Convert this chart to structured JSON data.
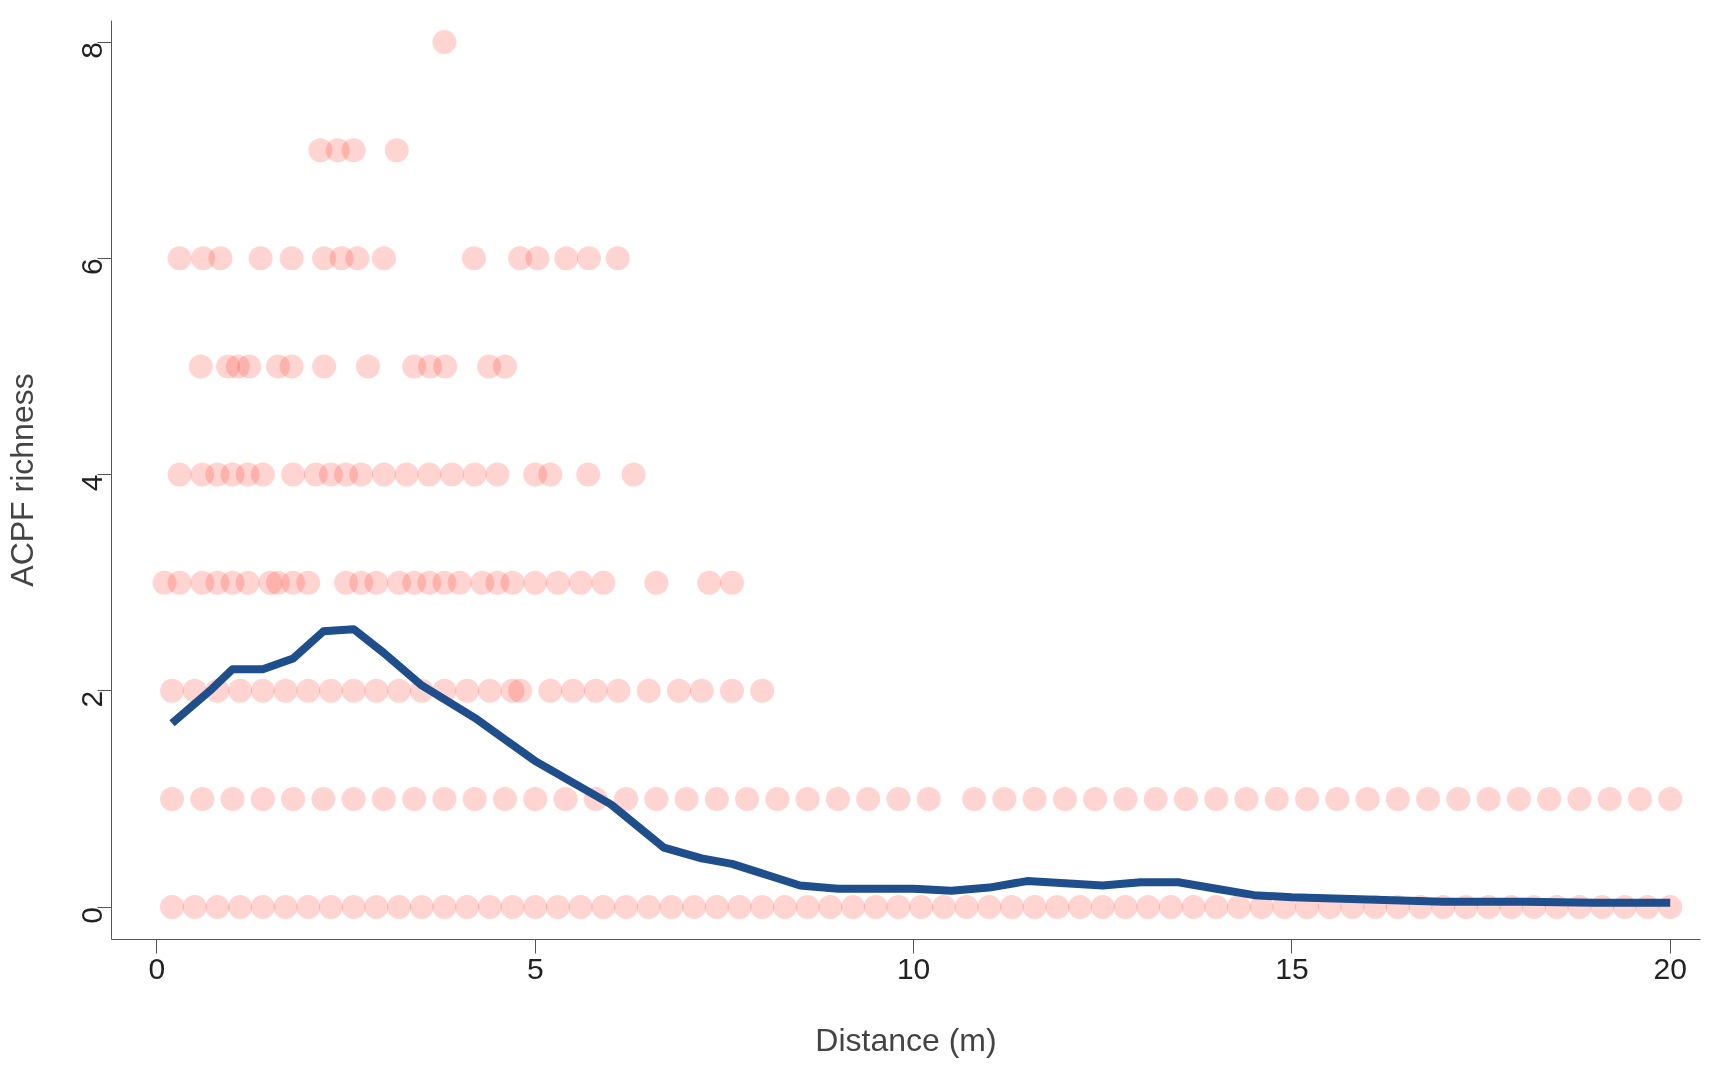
{
  "chart_data": {
    "type": "scatter",
    "xlabel": "Distance (m)",
    "ylabel": "ACPF richness",
    "xlim": [
      -0.6,
      20.4
    ],
    "ylim": [
      -0.3,
      8.2
    ],
    "xticks": [
      0,
      5,
      10,
      15,
      20
    ],
    "yticks": [
      0,
      2,
      4,
      6,
      8
    ],
    "grid": false,
    "marker": "circle",
    "series": [
      {
        "color": "#ff2a1a",
        "x": [
          3.8,
          2.16,
          2.39,
          2.6,
          3.17,
          0.3,
          0.61,
          0.84,
          1.37,
          1.78,
          2.21,
          2.44,
          2.65,
          3.0,
          4.19,
          4.8,
          5.03,
          5.41,
          5.71,
          6.09,
          0.58,
          0.94,
          1.07,
          1.22,
          1.6,
          1.78,
          2.21,
          2.79,
          3.4,
          3.61,
          3.81,
          4.39,
          4.6,
          0.3,
          0.6,
          0.8,
          1.0,
          1.2,
          1.4,
          1.8,
          2.1,
          2.3,
          2.5,
          2.7,
          3.0,
          3.3,
          3.6,
          3.9,
          4.2,
          4.5,
          5.0,
          5.2,
          5.7,
          6.3,
          0.1,
          0.3,
          0.6,
          0.8,
          1.0,
          1.2,
          1.5,
          1.6,
          1.8,
          2.0,
          2.5,
          2.7,
          2.9,
          3.2,
          3.4,
          3.6,
          3.8,
          4.0,
          4.3,
          4.5,
          4.7,
          5.0,
          5.3,
          5.6,
          5.9,
          6.6,
          7.3,
          7.6,
          0.2,
          0.5,
          0.8,
          1.1,
          1.4,
          1.7,
          2.0,
          2.3,
          2.6,
          2.9,
          3.2,
          3.5,
          3.8,
          4.1,
          4.4,
          4.7,
          4.8,
          5.2,
          5.5,
          5.8,
          6.1,
          6.5,
          6.9,
          7.2,
          7.6,
          8.0,
          0.2,
          0.6,
          1.0,
          1.4,
          1.8,
          2.2,
          2.6,
          3.0,
          3.4,
          3.8,
          4.2,
          4.6,
          5.0,
          5.4,
          5.8,
          6.2,
          6.6,
          7.0,
          7.4,
          7.8,
          8.2,
          8.6,
          9.0,
          9.4,
          9.8,
          10.2,
          10.8,
          11.2,
          11.6,
          12.0,
          12.4,
          12.8,
          13.2,
          13.6,
          14.0,
          14.4,
          14.8,
          15.2,
          15.6,
          16.0,
          16.4,
          16.8,
          17.2,
          17.6,
          18.0,
          18.4,
          18.8,
          19.2,
          19.6,
          20.0,
          0.2,
          0.5,
          0.8,
          1.1,
          1.4,
          1.7,
          2.0,
          2.3,
          2.6,
          2.9,
          3.2,
          3.5,
          3.8,
          4.1,
          4.4,
          4.7,
          5.0,
          5.3,
          5.6,
          5.9,
          6.2,
          6.5,
          6.8,
          7.1,
          7.4,
          7.7,
          8.0,
          8.3,
          8.6,
          8.9,
          9.2,
          9.5,
          9.8,
          10.1,
          10.4,
          10.7,
          11.0,
          11.3,
          11.6,
          11.9,
          12.2,
          12.5,
          12.8,
          13.1,
          13.4,
          13.7,
          14.0,
          14.3,
          14.6,
          14.9,
          15.2,
          15.5,
          15.8,
          16.1,
          16.4,
          16.7,
          17.0,
          17.3,
          17.6,
          17.9,
          18.2,
          18.5,
          18.8,
          19.1,
          19.4,
          19.7,
          20.0
        ],
        "values": [
          8,
          7,
          7,
          7,
          7,
          6,
          6,
          6,
          6,
          6,
          6,
          6,
          6,
          6,
          6,
          6,
          6,
          6,
          6,
          6,
          5,
          5,
          5,
          5,
          5,
          5,
          5,
          5,
          5,
          5,
          5,
          5,
          5,
          4,
          4,
          4,
          4,
          4,
          4,
          4,
          4,
          4,
          4,
          4,
          4,
          4,
          4,
          4,
          4,
          4,
          4,
          4,
          4,
          4,
          3,
          3,
          3,
          3,
          3,
          3,
          3,
          3,
          3,
          3,
          3,
          3,
          3,
          3,
          3,
          3,
          3,
          3,
          3,
          3,
          3,
          3,
          3,
          3,
          3,
          3,
          3,
          3,
          2,
          2,
          2,
          2,
          2,
          2,
          2,
          2,
          2,
          2,
          2,
          2,
          2,
          2,
          2,
          2,
          2,
          2,
          2,
          2,
          2,
          2,
          2,
          2,
          2,
          2,
          1,
          1,
          1,
          1,
          1,
          1,
          1,
          1,
          1,
          1,
          1,
          1,
          1,
          1,
          1,
          1,
          1,
          1,
          1,
          1,
          1,
          1,
          1,
          1,
          1,
          1,
          1,
          1,
          1,
          1,
          1,
          1,
          1,
          1,
          1,
          1,
          1,
          1,
          1,
          1,
          1,
          1,
          1,
          1,
          1,
          1,
          1,
          1,
          1,
          1,
          0,
          0,
          0,
          0,
          0,
          0,
          0,
          0,
          0,
          0,
          0,
          0,
          0,
          0,
          0,
          0,
          0,
          0,
          0,
          0,
          0,
          0,
          0,
          0,
          0,
          0,
          0,
          0,
          0,
          0,
          0,
          0,
          0,
          0,
          0,
          0,
          0,
          0,
          0,
          0,
          0,
          0,
          0,
          0,
          0,
          0,
          0,
          0,
          0,
          0,
          0,
          0,
          0,
          0,
          0,
          0,
          0,
          0,
          0,
          0,
          0,
          0,
          0,
          0,
          0,
          0,
          0
        ]
      },
      {
        "type": "line",
        "color": "#1f4e8c",
        "marker": "none",
        "line_style": "solid",
        "x": [
          0.2,
          0.7,
          1.0,
          1.4,
          1.8,
          2.2,
          2.6,
          3.0,
          3.5,
          4.2,
          5.0,
          6.0,
          6.7,
          7.2,
          7.6,
          8.5,
          9.0,
          10.0,
          10.5,
          11.0,
          11.5,
          12.0,
          12.5,
          13.0,
          13.5,
          14.0,
          14.5,
          15.0,
          16.0,
          17.0,
          18.0,
          19.0,
          20.0
        ],
        "values": [
          1.7,
          2.0,
          2.2,
          2.2,
          2.3,
          2.55,
          2.57,
          2.35,
          2.05,
          1.75,
          1.35,
          0.95,
          0.55,
          0.45,
          0.4,
          0.2,
          0.17,
          0.17,
          0.15,
          0.18,
          0.24,
          0.22,
          0.2,
          0.23,
          0.23,
          0.17,
          0.11,
          0.09,
          0.07,
          0.05,
          0.05,
          0.04,
          0.04
        ]
      }
    ]
  }
}
